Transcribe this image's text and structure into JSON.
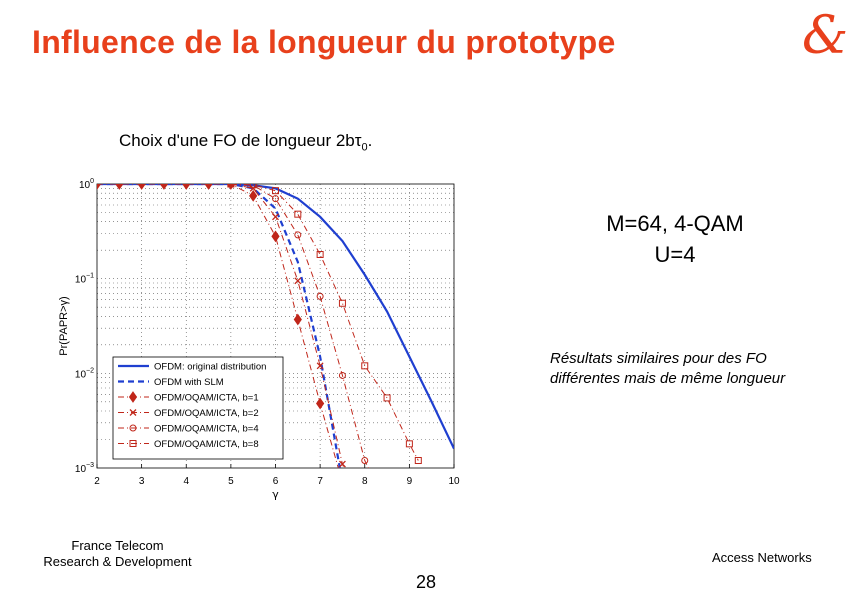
{
  "header": {
    "title": "Influence de la longueur du prototype",
    "logo_text": "&",
    "subtitle_prefix": "Choix d'une FO de longueur 2b",
    "subtitle_tau": "τ",
    "subtitle_sub": "0",
    "subtitle_suffix": "."
  },
  "annotations": {
    "params_line1": "M=64, 4-QAM",
    "params_line2": "U=4",
    "note_line1": "Résultats similaires pour des FO",
    "note_line2": "différentes mais de même longueur"
  },
  "footer": {
    "org_line1": "France Telecom",
    "org_line2": "Research & Development",
    "right": "Access Networks",
    "page": "28"
  },
  "colors": {
    "accent": "#e8401c",
    "ofdm": "#1f3fd0",
    "ofdm_oqam": "#c0261a"
  },
  "chart_data": {
    "type": "line",
    "xlabel": "γ",
    "ylabel": "Pr(PAPR>γ)",
    "xlim": [
      2,
      10
    ],
    "ylim": [
      0.001,
      1
    ],
    "yscale": "log",
    "grid": true,
    "legend_position": "bottom-left",
    "x_ticks": [
      "2",
      "3",
      "4",
      "5",
      "6",
      "7",
      "8",
      "9",
      "10"
    ],
    "y_ticks": [
      {
        "value": 1,
        "base": "10",
        "exp": "0"
      },
      {
        "value": 0.1,
        "base": "10",
        "exp": "−1"
      },
      {
        "value": 0.01,
        "base": "10",
        "exp": "−2"
      },
      {
        "value": 0.001,
        "base": "10",
        "exp": "−3"
      }
    ],
    "series": [
      {
        "name": "OFDM: original distribution",
        "style": "solid-blue",
        "marker": "none",
        "x": [
          2,
          5,
          5.5,
          6,
          6.5,
          7,
          7.5,
          8,
          8.5,
          9,
          9.5,
          10
        ],
        "y": [
          1,
          1,
          0.97,
          0.9,
          0.7,
          0.45,
          0.25,
          0.11,
          0.045,
          0.015,
          0.005,
          0.0016
        ]
      },
      {
        "name": "OFDM with SLM",
        "style": "dashed-blue",
        "marker": "none",
        "x": [
          2,
          5,
          5.5,
          6,
          6.5,
          7,
          7.5
        ],
        "y": [
          1,
          1,
          0.9,
          0.55,
          0.15,
          0.015,
          0.0007
        ]
      },
      {
        "name": "OFDM/OQAM/ICTA, b=1",
        "style": "dashdot-red",
        "marker": "diamond",
        "x": [
          2,
          2.5,
          3,
          3.5,
          4,
          4.5,
          5,
          5.5,
          6,
          6.5,
          7,
          7.5
        ],
        "y": [
          1,
          1,
          1,
          1,
          1,
          1,
          1,
          0.75,
          0.28,
          0.037,
          0.0048,
          0.0007
        ]
      },
      {
        "name": "OFDM/OQAM/ICTA, b=2",
        "style": "dashdot-red",
        "marker": "x",
        "x": [
          5,
          5.5,
          6,
          6.5,
          7,
          7.5,
          7.8
        ],
        "y": [
          1,
          0.9,
          0.45,
          0.095,
          0.012,
          0.0011,
          0.0005
        ]
      },
      {
        "name": "OFDM/OQAM/ICTA, b=4",
        "style": "dashdot-red",
        "marker": "circle",
        "x": [
          5,
          5.5,
          6,
          6.5,
          7,
          7.5,
          8,
          8.4
        ],
        "y": [
          1,
          0.97,
          0.7,
          0.29,
          0.065,
          0.0095,
          0.0012,
          0.0005
        ]
      },
      {
        "name": "OFDM/OQAM/ICTA, b=8",
        "style": "dashdot-red",
        "marker": "square",
        "x": [
          5,
          5.5,
          6,
          6.5,
          7,
          7.5,
          8,
          8.5,
          9,
          9.2
        ],
        "y": [
          1,
          0.98,
          0.85,
          0.48,
          0.18,
          0.055,
          0.012,
          0.0055,
          0.0018,
          0.0012
        ]
      }
    ]
  }
}
